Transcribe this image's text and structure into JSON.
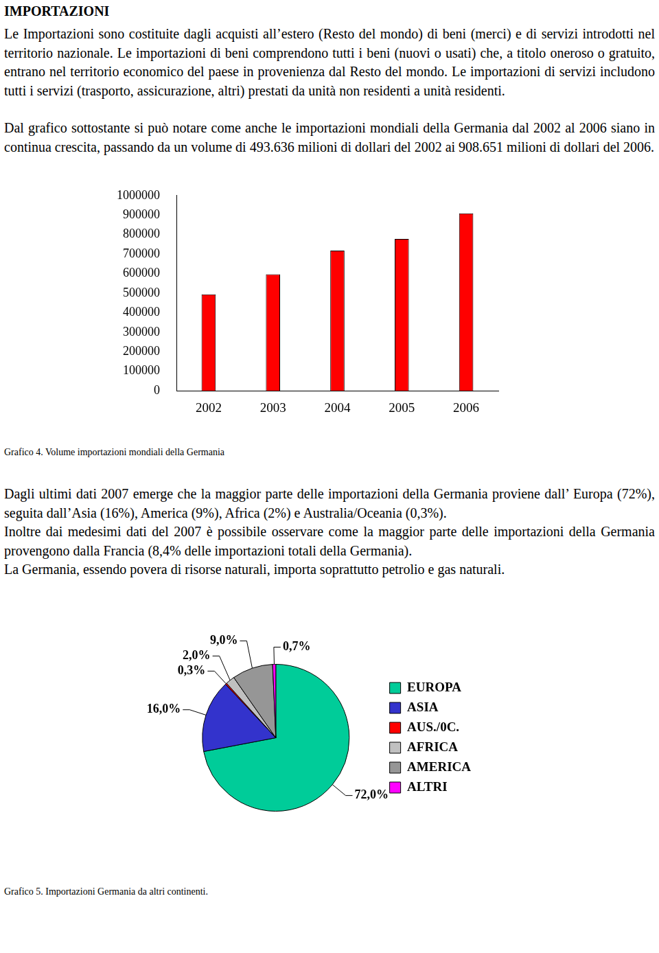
{
  "heading": "IMPORTAZIONI",
  "intro": [
    "Le Importazioni sono costituite dagli acquisti all’estero (Resto del mondo) di beni (merci) e di servizi introdotti nel territorio nazionale. Le importazioni di beni comprendono tutti i beni (nuovi o usati) che, a titolo oneroso o gratuito, entrano nel territorio economico del paese in provenienza dal Resto del mondo. Le importazioni di servizi includono tutti i servizi (trasporto, assicurazione, altri) prestati da unità non residenti a unità residenti.",
    "Dal grafico sottostante si può notare come anche le importazioni mondiali della Germania dal 2002 al 2006 siano in continua crescita, passando da un volume di 493.636 milioni di dollari del 2002 ai 908.651 milioni di dollari del 2006."
  ],
  "chart_data": [
    {
      "type": "bar",
      "title": "Grafico 4. Volume importazioni mondiali della Germania",
      "categories": [
        "2002",
        "2003",
        "2004",
        "2005",
        "2006"
      ],
      "values": [
        493636,
        597000,
        718000,
        778000,
        908651
      ],
      "color": "#ff0000",
      "ylim": [
        0,
        1000000
      ],
      "yticks": [
        0,
        100000,
        200000,
        300000,
        400000,
        500000,
        600000,
        700000,
        800000,
        900000,
        1000000
      ],
      "grid": false
    },
    {
      "type": "pie",
      "title": "Grafico 5.  Importazioni Germania da altri continenti.",
      "categories": [
        "EUROPA",
        "ASIA",
        "AUS./0C.",
        "AFRICA",
        "AMERICA",
        "ALTRI"
      ],
      "values": [
        72.0,
        16.0,
        0.3,
        2.0,
        9.0,
        0.7
      ],
      "value_labels": [
        "72,0%",
        "16,0%",
        "0,3%",
        "2,0%",
        "9,0%",
        "0,7%"
      ],
      "colors": [
        "#00cc99",
        "#3333cc",
        "#ff0000",
        "#c0c0c0",
        "#969696",
        "#ff00ff"
      ],
      "data_labels": true,
      "legend": "right"
    }
  ],
  "analysis": [
    "Dagli ultimi dati 2007 emerge che la maggior parte delle importazioni della Germania proviene dall’ Europa (72%), seguita dall’Asia (16%), America (9%), Africa (2%) e Australia/Oceania (0,3%).",
    "Inoltre dai medesimi dati del 2007 è possibile osservare come la maggior parte delle importazioni della Germania provengono dalla Francia (8,4% delle importazioni totali della Germania).",
    "La Germania, essendo povera di risorse naturali, importa soprattutto petrolio e gas naturali."
  ]
}
